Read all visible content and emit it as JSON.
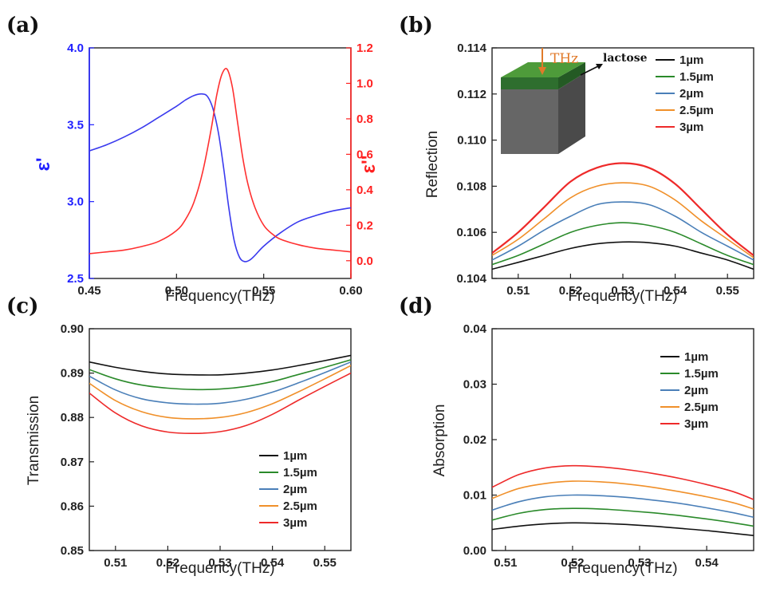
{
  "chart_data": [
    {
      "id": "a",
      "type": "line",
      "panel_label": "(a)",
      "xlabel": "Frequency(THz)",
      "ylabel": "ε'",
      "y2label": "ε''",
      "xlim": [
        0.45,
        0.6
      ],
      "ylim": [
        2.5,
        4.0
      ],
      "y2lim": [
        -0.1,
        1.2
      ],
      "xticks": [
        "0.45",
        "0.50",
        "0.55",
        "0.60"
      ],
      "yticks": [
        "2.5",
        "3.0",
        "3.5",
        "4.0"
      ],
      "y2ticks": [
        "0.0",
        "0.2",
        "0.4",
        "0.6",
        "0.8",
        "1.0",
        "1.2"
      ],
      "left_color": "#1f1fff",
      "right_color": "#ff2020",
      "series": [
        {
          "axis": "left",
          "color": "#3a3aee",
          "x": [
            0.45,
            0.46,
            0.47,
            0.48,
            0.49,
            0.5,
            0.505,
            0.51,
            0.515,
            0.518,
            0.521,
            0.524,
            0.527,
            0.53,
            0.533,
            0.536,
            0.539,
            0.542,
            0.545,
            0.55,
            0.56,
            0.57,
            0.58,
            0.59,
            0.6
          ],
          "y": [
            3.33,
            3.37,
            3.42,
            3.48,
            3.55,
            3.62,
            3.66,
            3.69,
            3.7,
            3.68,
            3.6,
            3.45,
            3.22,
            2.96,
            2.75,
            2.64,
            2.61,
            2.62,
            2.65,
            2.71,
            2.8,
            2.87,
            2.91,
            2.94,
            2.96
          ]
        },
        {
          "axis": "right",
          "color": "#ff3030",
          "x": [
            0.45,
            0.46,
            0.47,
            0.48,
            0.49,
            0.5,
            0.505,
            0.51,
            0.515,
            0.52,
            0.523,
            0.526,
            0.529,
            0.532,
            0.535,
            0.538,
            0.541,
            0.545,
            0.55,
            0.555,
            0.56,
            0.57,
            0.58,
            0.59,
            0.6
          ],
          "y": [
            0.04,
            0.05,
            0.06,
            0.08,
            0.11,
            0.17,
            0.23,
            0.33,
            0.5,
            0.75,
            0.93,
            1.05,
            1.08,
            0.98,
            0.78,
            0.58,
            0.43,
            0.3,
            0.2,
            0.15,
            0.12,
            0.09,
            0.07,
            0.06,
            0.05
          ]
        }
      ]
    },
    {
      "id": "b",
      "type": "line",
      "panel_label": "(b)",
      "xlabel": "Frequency(THz)",
      "ylabel": "Reflection",
      "xlim": [
        0.505,
        0.555
      ],
      "ylim": [
        0.104,
        0.114
      ],
      "xticks": [
        "0.51",
        "0.52",
        "0.53",
        "0.54",
        "0.55"
      ],
      "yticks": [
        "0.104",
        "0.106",
        "0.108",
        "0.110",
        "0.112",
        "0.114"
      ],
      "inset": {
        "arrow_label": "THz",
        "layer_label": "lactose"
      },
      "series": [
        {
          "name": "1µm",
          "color": "#111111",
          "x": [
            0.505,
            0.51,
            0.515,
            0.52,
            0.525,
            0.53,
            0.535,
            0.54,
            0.545,
            0.55,
            0.555
          ],
          "y": [
            0.1044,
            0.1047,
            0.105,
            0.1053,
            0.1055,
            0.10558,
            0.10555,
            0.1054,
            0.1051,
            0.1048,
            0.1044
          ]
        },
        {
          "name": "1.5µm",
          "color": "#2a8a2a",
          "x": [
            0.505,
            0.51,
            0.515,
            0.52,
            0.525,
            0.53,
            0.535,
            0.54,
            0.545,
            0.55,
            0.555
          ],
          "y": [
            0.1046,
            0.105,
            0.1055,
            0.106,
            0.1063,
            0.10642,
            0.1063,
            0.106,
            0.1055,
            0.105,
            0.1046
          ]
        },
        {
          "name": "2µm",
          "color": "#4a7fb8",
          "x": [
            0.505,
            0.51,
            0.515,
            0.52,
            0.525,
            0.53,
            0.535,
            0.54,
            0.545,
            0.55,
            0.555
          ],
          "y": [
            0.1048,
            0.1054,
            0.1061,
            0.1067,
            0.1072,
            0.10732,
            0.1072,
            0.1067,
            0.106,
            0.1054,
            0.1048
          ]
        },
        {
          "name": "2.5µm",
          "color": "#f0902a",
          "x": [
            0.505,
            0.51,
            0.515,
            0.52,
            0.525,
            0.53,
            0.535,
            0.54,
            0.545,
            0.55,
            0.555
          ],
          "y": [
            0.105,
            0.1057,
            0.1066,
            0.1075,
            0.108,
            0.10815,
            0.108,
            0.1074,
            0.1065,
            0.1057,
            0.1049
          ]
        },
        {
          "name": "3µm",
          "color": "#ee2a2a",
          "x": [
            0.505,
            0.51,
            0.515,
            0.52,
            0.525,
            0.53,
            0.535,
            0.54,
            0.545,
            0.55,
            0.555
          ],
          "y": [
            0.1051,
            0.106,
            0.1071,
            0.1082,
            0.1088,
            0.109,
            0.1088,
            0.1081,
            0.107,
            0.1059,
            0.105
          ]
        }
      ]
    },
    {
      "id": "c",
      "type": "line",
      "panel_label": "(c)",
      "xlabel": "Frequency(THz)",
      "ylabel": "Transmission",
      "xlim": [
        0.505,
        0.555
      ],
      "ylim": [
        0.85,
        0.9
      ],
      "xticks": [
        "0.51",
        "0.52",
        "0.53",
        "0.54",
        "0.55"
      ],
      "yticks": [
        "0.85",
        "0.86",
        "0.87",
        "0.88",
        "0.89",
        "0.90"
      ],
      "series": [
        {
          "name": "1µm",
          "color": "#111111",
          "x": [
            0.505,
            0.51,
            0.515,
            0.52,
            0.525,
            0.53,
            0.535,
            0.54,
            0.545,
            0.55,
            0.555
          ],
          "y": [
            0.8925,
            0.8913,
            0.8904,
            0.8898,
            0.8896,
            0.8896,
            0.89,
            0.8907,
            0.8917,
            0.8928,
            0.894
          ]
        },
        {
          "name": "1.5µm",
          "color": "#2a8a2a",
          "x": [
            0.505,
            0.51,
            0.515,
            0.52,
            0.525,
            0.53,
            0.535,
            0.54,
            0.545,
            0.55,
            0.555
          ],
          "y": [
            0.8908,
            0.8887,
            0.8873,
            0.8866,
            0.8863,
            0.8864,
            0.887,
            0.8881,
            0.8897,
            0.8913,
            0.893
          ]
        },
        {
          "name": "2µm",
          "color": "#4a7fb8",
          "x": [
            0.505,
            0.51,
            0.515,
            0.52,
            0.525,
            0.53,
            0.535,
            0.54,
            0.545,
            0.55,
            0.555
          ],
          "y": [
            0.8893,
            0.8862,
            0.8842,
            0.8833,
            0.883,
            0.8832,
            0.8841,
            0.8857,
            0.8878,
            0.8901,
            0.8925
          ]
        },
        {
          "name": "2.5µm",
          "color": "#f0902a",
          "x": [
            0.505,
            0.51,
            0.515,
            0.52,
            0.525,
            0.53,
            0.535,
            0.54,
            0.545,
            0.55,
            0.555
          ],
          "y": [
            0.8877,
            0.8838,
            0.8813,
            0.88,
            0.8797,
            0.88,
            0.8811,
            0.8831,
            0.8858,
            0.8887,
            0.8917
          ]
        },
        {
          "name": "3µm",
          "color": "#ee2a2a",
          "x": [
            0.505,
            0.51,
            0.515,
            0.52,
            0.525,
            0.53,
            0.535,
            0.54,
            0.545,
            0.55,
            0.555
          ],
          "y": [
            0.8855,
            0.881,
            0.8781,
            0.8767,
            0.8764,
            0.8768,
            0.8782,
            0.8807,
            0.8839,
            0.887,
            0.89
          ]
        }
      ]
    },
    {
      "id": "d",
      "type": "line",
      "panel_label": "(d)",
      "xlabel": "Frequency(THz)",
      "ylabel": "Absorption",
      "xlim": [
        0.508,
        0.547
      ],
      "ylim": [
        0.0,
        0.04
      ],
      "xticks": [
        "0.51",
        "0.52",
        "0.53",
        "0.54"
      ],
      "yticks": [
        "0.00",
        "0.01",
        "0.02",
        "0.03",
        "0.04"
      ],
      "series": [
        {
          "name": "1µm",
          "color": "#111111",
          "x": [
            0.508,
            0.512,
            0.516,
            0.52,
            0.524,
            0.528,
            0.532,
            0.536,
            0.54,
            0.544,
            0.547
          ],
          "y": [
            0.0038,
            0.0044,
            0.0048,
            0.005,
            0.0049,
            0.0047,
            0.0044,
            0.004,
            0.0036,
            0.0031,
            0.0027
          ]
        },
        {
          "name": "1.5µm",
          "color": "#2a8a2a",
          "x": [
            0.508,
            0.512,
            0.516,
            0.52,
            0.524,
            0.528,
            0.532,
            0.536,
            0.54,
            0.544,
            0.547
          ],
          "y": [
            0.0055,
            0.0067,
            0.0074,
            0.0076,
            0.0075,
            0.0072,
            0.0068,
            0.0063,
            0.0057,
            0.005,
            0.0044
          ]
        },
        {
          "name": "2µm",
          "color": "#4a7fb8",
          "x": [
            0.508,
            0.512,
            0.516,
            0.52,
            0.524,
            0.528,
            0.532,
            0.536,
            0.54,
            0.544,
            0.547
          ],
          "y": [
            0.0073,
            0.0088,
            0.0097,
            0.01,
            0.0099,
            0.0096,
            0.0091,
            0.0085,
            0.0077,
            0.0068,
            0.006
          ]
        },
        {
          "name": "2.5µm",
          "color": "#f0902a",
          "x": [
            0.508,
            0.512,
            0.516,
            0.52,
            0.524,
            0.528,
            0.532,
            0.536,
            0.54,
            0.544,
            0.547
          ],
          "y": [
            0.0094,
            0.0112,
            0.0121,
            0.0125,
            0.0124,
            0.012,
            0.0114,
            0.0106,
            0.0097,
            0.0086,
            0.0075
          ]
        },
        {
          "name": "3µm",
          "color": "#ee2a2a",
          "x": [
            0.508,
            0.512,
            0.516,
            0.52,
            0.524,
            0.528,
            0.532,
            0.536,
            0.54,
            0.544,
            0.547
          ],
          "y": [
            0.0114,
            0.0137,
            0.0149,
            0.0153,
            0.0151,
            0.0146,
            0.0139,
            0.013,
            0.0119,
            0.0106,
            0.0092
          ]
        }
      ]
    }
  ]
}
